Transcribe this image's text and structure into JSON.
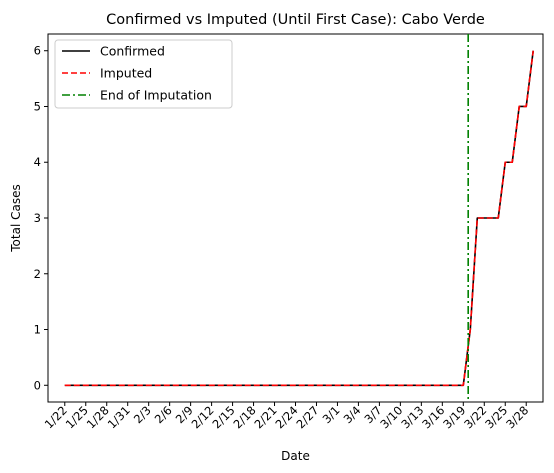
{
  "chart_data": {
    "type": "line",
    "title": "Confirmed vs Imputed (Until First Case): Cabo Verde",
    "xlabel": "Date",
    "ylabel": "Total Cases",
    "x": [
      "1/22",
      "1/23",
      "1/24",
      "1/25",
      "1/26",
      "1/27",
      "1/28",
      "1/29",
      "1/30",
      "1/31",
      "2/1",
      "2/2",
      "2/3",
      "2/4",
      "2/5",
      "2/6",
      "2/7",
      "2/8",
      "2/9",
      "2/10",
      "2/11",
      "2/12",
      "2/13",
      "2/14",
      "2/15",
      "2/16",
      "2/17",
      "2/18",
      "2/19",
      "2/20",
      "2/21",
      "2/22",
      "2/23",
      "2/24",
      "2/25",
      "2/26",
      "2/27",
      "2/28",
      "2/29",
      "3/1",
      "3/2",
      "3/3",
      "3/4",
      "3/5",
      "3/6",
      "3/7",
      "3/8",
      "3/9",
      "3/10",
      "3/11",
      "3/12",
      "3/13",
      "3/14",
      "3/15",
      "3/16",
      "3/17",
      "3/18",
      "3/19",
      "3/20",
      "3/21",
      "3/22",
      "3/23",
      "3/24",
      "3/25",
      "3/26",
      "3/27",
      "3/28",
      "3/29"
    ],
    "x_tick_labels": [
      "1/22",
      "1/25",
      "1/28",
      "1/31",
      "2/3",
      "2/6",
      "2/9",
      "2/12",
      "2/15",
      "2/18",
      "2/21",
      "2/24",
      "2/27",
      "3/1",
      "3/4",
      "3/7",
      "3/10",
      "3/13",
      "3/16",
      "3/19",
      "3/22",
      "3/25",
      "3/28"
    ],
    "y_ticks": [
      0,
      1,
      2,
      3,
      4,
      5,
      6
    ],
    "ylim": [
      -0.3,
      6.3
    ],
    "series": [
      {
        "name": "Confirmed",
        "color": "#000000",
        "style": "solid",
        "values": [
          0,
          0,
          0,
          0,
          0,
          0,
          0,
          0,
          0,
          0,
          0,
          0,
          0,
          0,
          0,
          0,
          0,
          0,
          0,
          0,
          0,
          0,
          0,
          0,
          0,
          0,
          0,
          0,
          0,
          0,
          0,
          0,
          0,
          0,
          0,
          0,
          0,
          0,
          0,
          0,
          0,
          0,
          0,
          0,
          0,
          0,
          0,
          0,
          0,
          0,
          0,
          0,
          0,
          0,
          0,
          0,
          0,
          0,
          1,
          3,
          3,
          3,
          3,
          4,
          4,
          5,
          5,
          6
        ]
      },
      {
        "name": "Imputed",
        "color": "#ff0000",
        "style": "dashed",
        "values": [
          0,
          0,
          0,
          0,
          0,
          0,
          0,
          0,
          0,
          0,
          0,
          0,
          0,
          0,
          0,
          0,
          0,
          0,
          0,
          0,
          0,
          0,
          0,
          0,
          0,
          0,
          0,
          0,
          0,
          0,
          0,
          0,
          0,
          0,
          0,
          0,
          0,
          0,
          0,
          0,
          0,
          0,
          0,
          0,
          0,
          0,
          0,
          0,
          0,
          0,
          0,
          0,
          0,
          0,
          0,
          0,
          0,
          0,
          1,
          3,
          3,
          3,
          3,
          4,
          4,
          5,
          5,
          6
        ]
      }
    ],
    "vline": {
      "name": "End of Imputation",
      "color": "#008000",
      "style": "dashdot",
      "x": "3/20",
      "index": 57.7
    },
    "legend": {
      "position": "top-left",
      "entries": [
        "Confirmed",
        "Imputed",
        "End of Imputation"
      ]
    },
    "grid": false
  }
}
